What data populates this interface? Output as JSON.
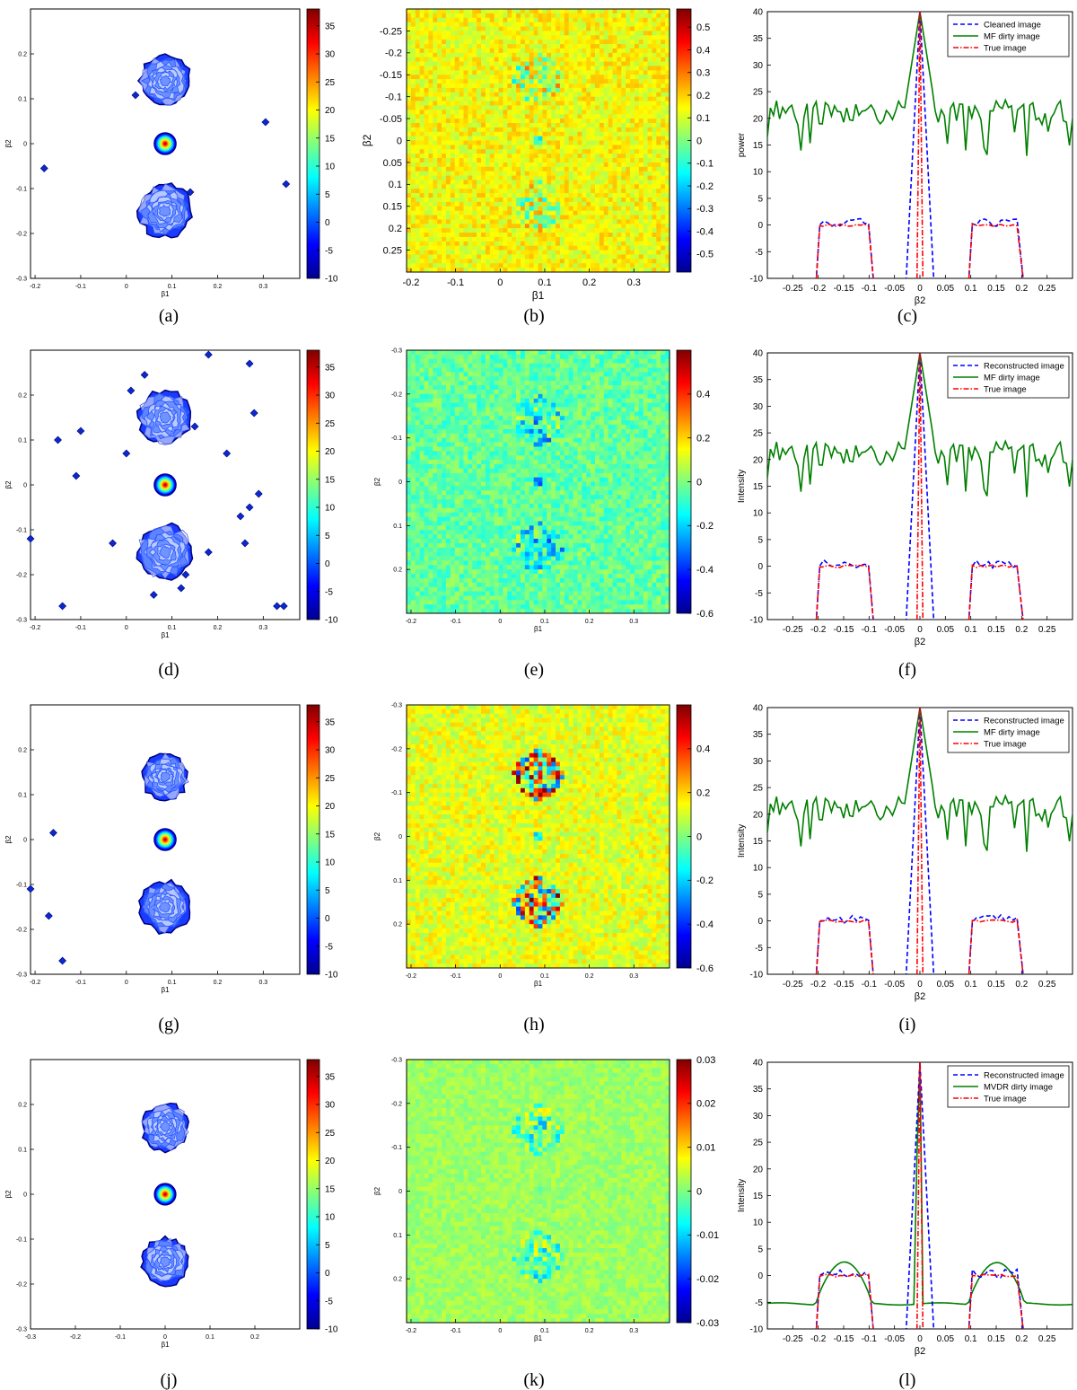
{
  "figure": {
    "captions": [
      "(a)",
      "(b)",
      "(c)",
      "(d)",
      "(e)",
      "(f)",
      "(g)",
      "(h)",
      "(i)",
      "(j)",
      "(k)",
      "(l)"
    ]
  },
  "colormap": {
    "stops": [
      "#00008f",
      "#0000ff",
      "#007fff",
      "#00ffff",
      "#7fff7f",
      "#ffff00",
      "#ff7f00",
      "#ff0000",
      "#7f0000"
    ]
  },
  "chart_data": [
    {
      "id": "a",
      "type": "heatmap",
      "subtype": "contour",
      "xlabel": "β1",
      "ylabel": "β2",
      "xlim": [
        -0.21,
        0.38
      ],
      "ylim": [
        0.3,
        -0.3
      ],
      "xticks": [
        "-0.2",
        "-0.1",
        "0",
        "0.1",
        "0.2",
        "0.3"
      ],
      "yticks": [
        "0.2",
        "0.1",
        "0",
        "-0.1",
        "-0.2",
        "-0.3"
      ],
      "colorbar": {
        "range": [
          -10,
          38
        ],
        "ticks": [
          "35",
          "30",
          "25",
          "20",
          "15",
          "10",
          "5",
          "0",
          "-5",
          "-10"
        ]
      },
      "sources": [
        {
          "name": "upper disk",
          "x": 0.085,
          "y": 0.14,
          "r": 0.055
        },
        {
          "name": "center point",
          "x": 0.085,
          "y": 0.0,
          "r": 0.024
        },
        {
          "name": "lower disk",
          "x": 0.085,
          "y": -0.15,
          "r": 0.058
        }
      ],
      "artifacts": [
        [
          -0.18,
          -0.055
        ],
        [
          0.02,
          0.108
        ],
        [
          0.305,
          0.048
        ],
        [
          0.35,
          -0.09
        ],
        [
          0.14,
          -0.108
        ]
      ]
    },
    {
      "id": "b",
      "type": "heatmap",
      "subtype": "residual",
      "xlabel": "β1",
      "ylabel": "β2",
      "xlim": [
        -0.21,
        0.38
      ],
      "ylim": [
        -0.3,
        0.3
      ],
      "xticks": [
        "-0.2",
        "-0.1",
        "0",
        "0.1",
        "0.2",
        "0.3"
      ],
      "yticks": [
        "-0.25",
        "-0.2",
        "-0.15",
        "-0.1",
        "-0.05",
        "0",
        "0.05",
        "0.1",
        "0.15",
        "0.2",
        "0.25"
      ],
      "colorbar": {
        "range": [
          -0.58,
          0.58
        ],
        "ticks": [
          "0.5",
          "0.4",
          "0.3",
          "0.2",
          "0.1",
          "0",
          "-0.1",
          "-0.2",
          "-0.3",
          "-0.4",
          "-0.5"
        ]
      }
    },
    {
      "id": "c",
      "type": "line",
      "xlabel": "β2",
      "ylabel": "power",
      "xlim": [
        -0.3,
        0.3
      ],
      "ylim": [
        -10,
        40
      ],
      "xticks": [
        "-0.25",
        "-0.2",
        "-0.15",
        "-0.1",
        "-0.05",
        "0",
        "0.05",
        "0.1",
        "0.15",
        "0.2",
        "0.25"
      ],
      "yticks": [
        "40",
        "35",
        "30",
        "25",
        "20",
        "15",
        "10",
        "5",
        "0",
        "-5",
        "-10"
      ],
      "legend": [
        "Cleaned image",
        "MF dirty image",
        "True image"
      ]
    },
    {
      "id": "d",
      "type": "heatmap",
      "subtype": "contour",
      "xlabel": "β1",
      "ylabel": "β2",
      "xlim": [
        -0.21,
        0.38
      ],
      "ylim": [
        0.3,
        -0.3
      ],
      "xticks": [
        "-0.2",
        "-0.1",
        "0",
        "0.1",
        "0.2",
        "0.3"
      ],
      "yticks": [
        "0.2",
        "0.1",
        "0",
        "-0.1",
        "-0.2",
        "-0.3"
      ],
      "colorbar": {
        "range": [
          -10,
          38
        ],
        "ticks": [
          "35",
          "30",
          "25",
          "20",
          "15",
          "10",
          "5",
          "0",
          "-5",
          "-10"
        ]
      },
      "sources": [
        {
          "name": "upper disk",
          "x": 0.085,
          "y": 0.15,
          "r": 0.058
        },
        {
          "name": "center point",
          "x": 0.085,
          "y": 0.0,
          "r": 0.024
        },
        {
          "name": "lower disk",
          "x": 0.085,
          "y": -0.15,
          "r": 0.06
        }
      ],
      "artifacts": [
        [
          0.18,
          0.29
        ],
        [
          0.27,
          0.27
        ],
        [
          0.04,
          0.245
        ],
        [
          0.01,
          0.21
        ],
        [
          -0.1,
          0.12
        ],
        [
          -0.15,
          0.1
        ],
        [
          0.15,
          0.13
        ],
        [
          0.28,
          0.16
        ],
        [
          0.22,
          0.07
        ],
        [
          0.0,
          0.07
        ],
        [
          -0.11,
          0.02
        ],
        [
          0.29,
          -0.02
        ],
        [
          0.27,
          -0.05
        ],
        [
          0.25,
          -0.07
        ],
        [
          -0.03,
          -0.13
        ],
        [
          0.18,
          -0.15
        ],
        [
          0.26,
          -0.13
        ],
        [
          0.13,
          -0.2
        ],
        [
          0.12,
          -0.23
        ],
        [
          0.06,
          -0.245
        ],
        [
          -0.21,
          -0.12
        ],
        [
          -0.14,
          -0.27
        ],
        [
          0.33,
          -0.27
        ],
        [
          0.345,
          -0.27
        ]
      ]
    },
    {
      "id": "e",
      "type": "heatmap",
      "subtype": "residual",
      "xlabel": "β1",
      "ylabel": "β2",
      "xlim": [
        -0.21,
        0.38
      ],
      "ylim": [
        -0.3,
        0.3
      ],
      "xticks": [
        "-0.2",
        "-0.1",
        "0",
        "0.1",
        "0.2",
        "0.3"
      ],
      "yticks": [
        "-0.3",
        "-0.2",
        "-0.1",
        "0",
        "0.1",
        "0.2"
      ],
      "colorbar": {
        "range": [
          -0.6,
          0.6
        ],
        "ticks": [
          "0.4",
          "0.2",
          "0",
          "-0.2",
          "-0.4",
          "-0.6"
        ]
      }
    },
    {
      "id": "f",
      "type": "line",
      "xlabel": "β2",
      "ylabel": "Intensity",
      "xlim": [
        -0.3,
        0.3
      ],
      "ylim": [
        -10,
        40
      ],
      "xticks": [
        "-0.25",
        "-0.2",
        "-0.15",
        "-0.1",
        "-0.05",
        "0",
        "0.05",
        "0.1",
        "0.15",
        "0.2",
        "0.25"
      ],
      "yticks": [
        "40",
        "35",
        "30",
        "25",
        "20",
        "15",
        "10",
        "5",
        "0",
        "-5",
        "-10"
      ],
      "legend": [
        "Reconstructed image",
        "MF dirty image",
        "True image"
      ]
    },
    {
      "id": "g",
      "type": "heatmap",
      "subtype": "contour",
      "xlabel": "β1",
      "ylabel": "β2",
      "xlim": [
        -0.21,
        0.38
      ],
      "ylim": [
        0.3,
        -0.3
      ],
      "xticks": [
        "-0.2",
        "-0.1",
        "0",
        "0.1",
        "0.2",
        "0.3"
      ],
      "yticks": [
        "0.2",
        "0.1",
        "0",
        "-0.1",
        "-0.2",
        "-0.3"
      ],
      "colorbar": {
        "range": [
          -10,
          38
        ],
        "ticks": [
          "35",
          "30",
          "25",
          "20",
          "15",
          "10",
          "5",
          "0",
          "-5",
          "-10"
        ]
      },
      "sources": [
        {
          "name": "upper disk",
          "x": 0.085,
          "y": 0.14,
          "r": 0.05
        },
        {
          "name": "center point",
          "x": 0.085,
          "y": 0.0,
          "r": 0.024
        },
        {
          "name": "lower disk",
          "x": 0.085,
          "y": -0.15,
          "r": 0.055
        }
      ],
      "artifacts": [
        [
          -0.16,
          0.015
        ],
        [
          -0.21,
          -0.11
        ],
        [
          -0.17,
          -0.17
        ],
        [
          -0.14,
          -0.27
        ]
      ]
    },
    {
      "id": "h",
      "type": "heatmap",
      "subtype": "residual",
      "xlabel": "β1",
      "ylabel": "β2",
      "xlim": [
        -0.21,
        0.38
      ],
      "ylim": [
        -0.3,
        0.3
      ],
      "xticks": [
        "-0.2",
        "-0.1",
        "0",
        "0.1",
        "0.2",
        "0.3"
      ],
      "yticks": [
        "-0.3",
        "-0.2",
        "-0.1",
        "0",
        "0.1",
        "0.2"
      ],
      "colorbar": {
        "range": [
          -0.6,
          0.6
        ],
        "ticks": [
          "0.4",
          "0.2",
          "0",
          "-0.2",
          "-0.4",
          "-0.6"
        ]
      }
    },
    {
      "id": "i",
      "type": "line",
      "xlabel": "β2",
      "ylabel": "Intensity",
      "xlim": [
        -0.3,
        0.3
      ],
      "ylim": [
        -10,
        40
      ],
      "xticks": [
        "-0.25",
        "-0.2",
        "-0.15",
        "-0.1",
        "-0.05",
        "0",
        "0.05",
        "0.1",
        "0.15",
        "0.2",
        "0.25"
      ],
      "yticks": [
        "40",
        "35",
        "30",
        "25",
        "20",
        "15",
        "10",
        "5",
        "0",
        "-5",
        "-10"
      ],
      "legend": [
        "Reconstructed image",
        "MF dirty image",
        "True image"
      ]
    },
    {
      "id": "j",
      "type": "heatmap",
      "subtype": "contour",
      "xlabel": "β1",
      "ylabel": "β2",
      "xlim": [
        -0.3,
        0.3
      ],
      "ylim": [
        0.3,
        -0.3
      ],
      "xticks": [
        "-0.3",
        "-0.2",
        "-0.1",
        "0",
        "0.1",
        "0.2"
      ],
      "yticks": [
        "0.2",
        "0.1",
        "0",
        "-0.1",
        "-0.2",
        "-0.3"
      ],
      "colorbar": {
        "range": [
          -10,
          38
        ],
        "ticks": [
          "35",
          "30",
          "25",
          "20",
          "15",
          "10",
          "5",
          "0",
          "-5",
          "-10"
        ]
      },
      "sources": [
        {
          "name": "upper disk",
          "x": 0.0,
          "y": 0.15,
          "r": 0.052
        },
        {
          "name": "center point",
          "x": 0.0,
          "y": 0.0,
          "r": 0.024
        },
        {
          "name": "lower disk",
          "x": 0.0,
          "y": -0.15,
          "r": 0.052
        }
      ],
      "artifacts": []
    },
    {
      "id": "k",
      "type": "heatmap",
      "subtype": "residual",
      "xlabel": "β1",
      "ylabel": "β2",
      "xlim": [
        -0.21,
        0.38
      ],
      "ylim": [
        -0.3,
        0.3
      ],
      "xticks": [
        "-0.2",
        "-0.1",
        "0",
        "0.1",
        "0.2",
        "0.3"
      ],
      "yticks": [
        "-0.3",
        "-0.2",
        "-0.1",
        "0",
        "0.1",
        "0.2"
      ],
      "colorbar": {
        "range": [
          -0.03,
          0.03
        ],
        "ticks": [
          "0.03",
          "0.02",
          "0.01",
          "0",
          "-0.01",
          "-0.02",
          "-0.03"
        ]
      }
    },
    {
      "id": "l",
      "type": "line",
      "xlabel": "β2",
      "ylabel": "Intensity",
      "xlim": [
        -0.3,
        0.3
      ],
      "ylim": [
        -10,
        40
      ],
      "xticks": [
        "-0.25",
        "-0.2",
        "-0.15",
        "-0.1",
        "-0.05",
        "0",
        "0.05",
        "0.1",
        "0.15",
        "0.2",
        "0.25"
      ],
      "yticks": [
        "40",
        "35",
        "30",
        "25",
        "20",
        "15",
        "10",
        "5",
        "0",
        "-5",
        "-10"
      ],
      "legend": [
        "Reconstructed image",
        "MVDR dirty image",
        "True image"
      ],
      "mvdr": true
    }
  ]
}
